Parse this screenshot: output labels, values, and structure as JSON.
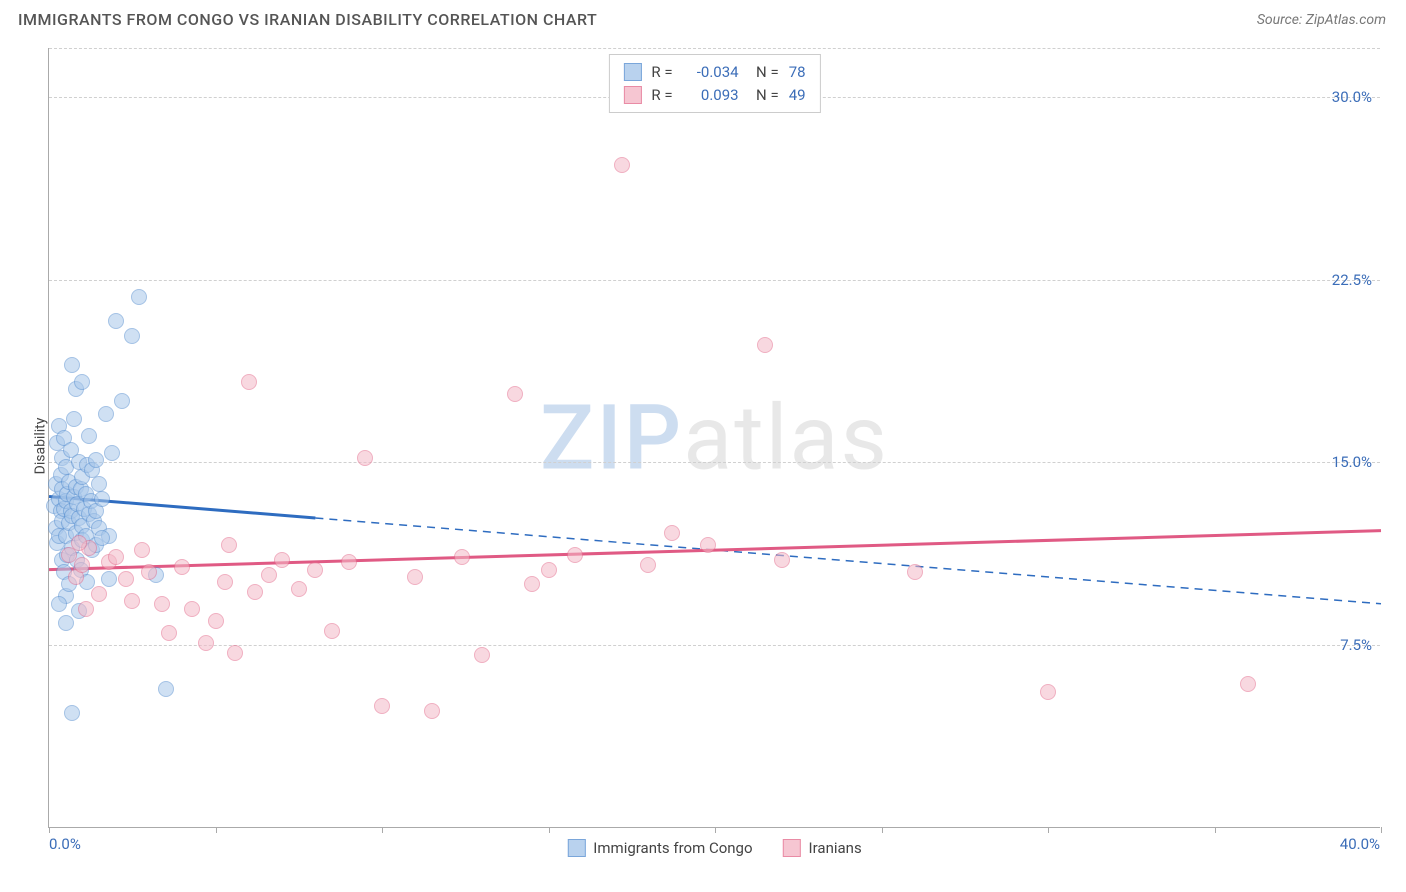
{
  "title": "IMMIGRANTS FROM CONGO VS IRANIAN DISABILITY CORRELATION CHART",
  "source": "Source: ZipAtlas.com",
  "ylabel": "Disability",
  "watermark_zip": "ZIP",
  "watermark_rest": "atlas",
  "chart": {
    "type": "scatter",
    "xlim": [
      0,
      40
    ],
    "ylim": [
      0,
      32
    ],
    "yticks": [
      7.5,
      15.0,
      22.5,
      30.0
    ],
    "ytick_labels": [
      "7.5%",
      "15.0%",
      "22.5%",
      "30.0%"
    ],
    "xticks": [
      0,
      5,
      10,
      15,
      20,
      25,
      30,
      35,
      40
    ],
    "x_label_first": "0.0%",
    "x_label_last": "40.0%",
    "background_color": "#ffffff",
    "grid_color": "#d0d0d0",
    "axis_color": "#aaaaaa",
    "tick_label_color": "#3b6db8",
    "marker_radius": 8,
    "series": [
      {
        "name": "Immigrants from Congo",
        "fill_color": "#a8c7ea",
        "stroke_color": "#5a91d1",
        "fill_opacity": 0.55,
        "R": "-0.034",
        "N": "78",
        "regression": {
          "solid_from_x": 0,
          "solid_to_x": 8,
          "y_at_x0": 13.6,
          "y_at_x40": 9.2,
          "line_color": "#2e6cc0",
          "line_width": 3
        },
        "points": [
          [
            0.15,
            13.2
          ],
          [
            0.2,
            14.1
          ],
          [
            0.2,
            12.3
          ],
          [
            0.25,
            15.8
          ],
          [
            0.25,
            11.7
          ],
          [
            0.3,
            13.5
          ],
          [
            0.3,
            12.0
          ],
          [
            0.3,
            16.5
          ],
          [
            0.35,
            13.0
          ],
          [
            0.35,
            14.5
          ],
          [
            0.4,
            11.0
          ],
          [
            0.4,
            12.6
          ],
          [
            0.4,
            13.9
          ],
          [
            0.4,
            15.2
          ],
          [
            0.45,
            10.5
          ],
          [
            0.45,
            13.1
          ],
          [
            0.45,
            16.0
          ],
          [
            0.5,
            9.5
          ],
          [
            0.5,
            12.0
          ],
          [
            0.5,
            13.4
          ],
          [
            0.5,
            14.8
          ],
          [
            0.55,
            11.2
          ],
          [
            0.55,
            13.7
          ],
          [
            0.6,
            12.5
          ],
          [
            0.6,
            10.0
          ],
          [
            0.6,
            14.2
          ],
          [
            0.65,
            13.0
          ],
          [
            0.65,
            15.5
          ],
          [
            0.7,
            11.5
          ],
          [
            0.7,
            12.8
          ],
          [
            0.75,
            13.6
          ],
          [
            0.75,
            16.8
          ],
          [
            0.8,
            12.1
          ],
          [
            0.8,
            14.0
          ],
          [
            0.85,
            11.0
          ],
          [
            0.85,
            13.3
          ],
          [
            0.9,
            12.7
          ],
          [
            0.9,
            15.0
          ],
          [
            0.95,
            13.9
          ],
          [
            0.95,
            10.6
          ],
          [
            1.0,
            12.4
          ],
          [
            1.0,
            14.4
          ],
          [
            1.0,
            11.8
          ],
          [
            1.05,
            13.1
          ],
          [
            1.1,
            12.0
          ],
          [
            1.1,
            13.7
          ],
          [
            1.15,
            14.9
          ],
          [
            1.15,
            10.1
          ],
          [
            1.2,
            12.9
          ],
          [
            1.2,
            16.1
          ],
          [
            1.25,
            13.4
          ],
          [
            1.3,
            11.4
          ],
          [
            1.3,
            14.7
          ],
          [
            1.35,
            12.6
          ],
          [
            1.4,
            13.0
          ],
          [
            1.4,
            11.6
          ],
          [
            1.5,
            12.3
          ],
          [
            1.5,
            14.1
          ],
          [
            1.6,
            13.5
          ],
          [
            1.7,
            17.0
          ],
          [
            1.8,
            12.0
          ],
          [
            1.9,
            15.4
          ],
          [
            0.7,
            19.0
          ],
          [
            0.8,
            18.0
          ],
          [
            1.0,
            18.3
          ],
          [
            2.2,
            17.5
          ],
          [
            2.5,
            20.2
          ],
          [
            2.7,
            21.8
          ],
          [
            2.0,
            20.8
          ],
          [
            0.3,
            9.2
          ],
          [
            0.5,
            8.4
          ],
          [
            0.7,
            4.7
          ],
          [
            0.9,
            8.9
          ],
          [
            3.5,
            5.7
          ],
          [
            3.2,
            10.4
          ],
          [
            1.4,
            15.1
          ],
          [
            1.6,
            11.9
          ],
          [
            1.8,
            10.2
          ]
        ]
      },
      {
        "name": "Iranians",
        "fill_color": "#f4b9c7",
        "stroke_color": "#e46f8f",
        "fill_opacity": 0.55,
        "R": "0.093",
        "N": "49",
        "regression": {
          "solid_from_x": 0,
          "solid_to_x": 40,
          "y_at_x0": 10.6,
          "y_at_x40": 12.2,
          "line_color": "#e05a84",
          "line_width": 3
        },
        "points": [
          [
            0.6,
            11.2
          ],
          [
            0.8,
            10.3
          ],
          [
            1.0,
            10.8
          ],
          [
            1.2,
            11.5
          ],
          [
            1.5,
            9.6
          ],
          [
            1.8,
            10.9
          ],
          [
            2.0,
            11.1
          ],
          [
            2.3,
            10.2
          ],
          [
            2.5,
            9.3
          ],
          [
            2.8,
            11.4
          ],
          [
            3.0,
            10.5
          ],
          [
            3.4,
            9.2
          ],
          [
            3.6,
            8.0
          ],
          [
            4.0,
            10.7
          ],
          [
            4.3,
            9.0
          ],
          [
            4.7,
            7.6
          ],
          [
            5.0,
            8.5
          ],
          [
            5.3,
            10.1
          ],
          [
            5.6,
            7.2
          ],
          [
            6.0,
            18.3
          ],
          [
            6.2,
            9.7
          ],
          [
            6.6,
            10.4
          ],
          [
            7.0,
            11.0
          ],
          [
            7.5,
            9.8
          ],
          [
            8.0,
            10.6
          ],
          [
            8.5,
            8.1
          ],
          [
            9.0,
            10.9
          ],
          [
            9.5,
            15.2
          ],
          [
            10.0,
            5.0
          ],
          [
            11.0,
            10.3
          ],
          [
            11.5,
            4.8
          ],
          [
            12.4,
            11.1
          ],
          [
            13.0,
            7.1
          ],
          [
            14.0,
            17.8
          ],
          [
            14.5,
            10.0
          ],
          [
            15.0,
            10.6
          ],
          [
            15.8,
            11.2
          ],
          [
            17.2,
            27.2
          ],
          [
            18.0,
            10.8
          ],
          [
            18.7,
            12.1
          ],
          [
            19.8,
            11.6
          ],
          [
            21.5,
            19.8
          ],
          [
            22.0,
            11.0
          ],
          [
            26.0,
            10.5
          ],
          [
            30.0,
            5.6
          ],
          [
            36.0,
            5.9
          ],
          [
            5.4,
            11.6
          ],
          [
            1.1,
            9.0
          ],
          [
            0.9,
            11.7
          ]
        ]
      }
    ],
    "legend_bottom": [
      {
        "label": "Immigrants from Congo",
        "fill": "#a8c7ea",
        "stroke": "#5a91d1"
      },
      {
        "label": "Iranians",
        "fill": "#f4b9c7",
        "stroke": "#e46f8f"
      }
    ]
  }
}
